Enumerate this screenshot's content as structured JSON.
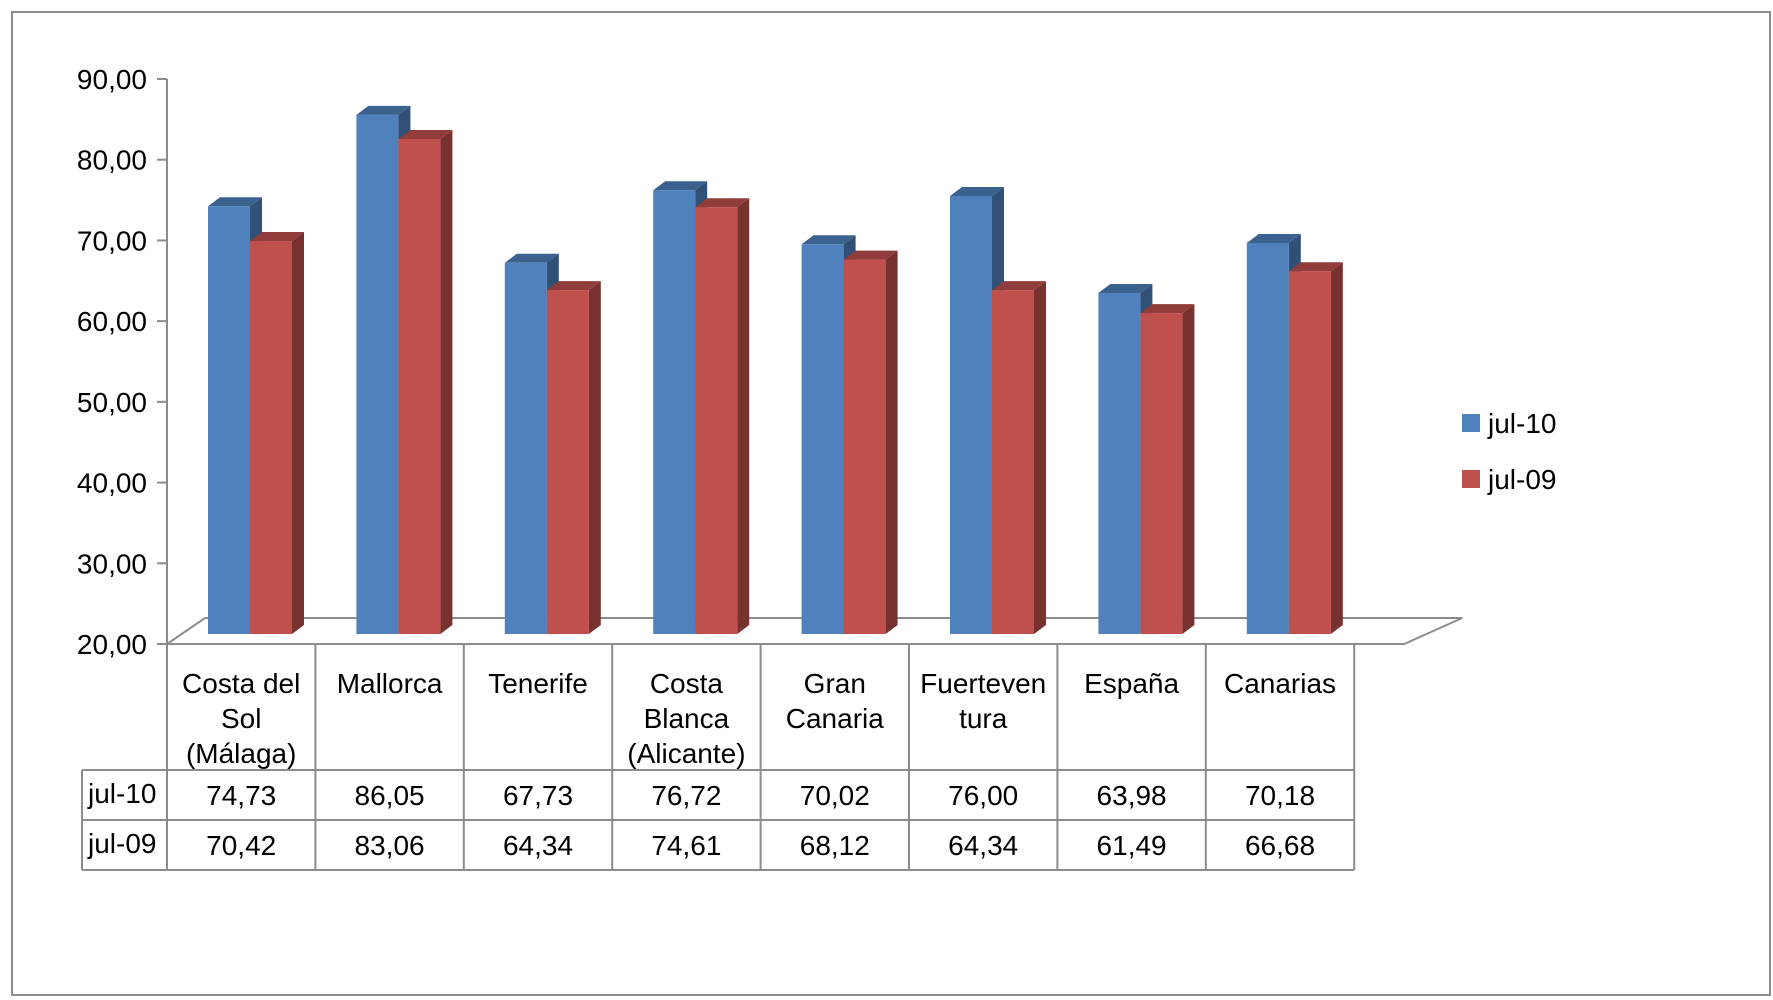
{
  "chart_data": {
    "type": "bar",
    "categories": [
      "Costa del Sol (Málaga)",
      "Mallorca",
      "Tenerife",
      "Costa Blanca (Alicante)",
      "Gran Canaria",
      "Fuerteventura",
      "España",
      "Canarias"
    ],
    "category_label_lines": [
      [
        "Costa del",
        "Sol",
        "(Málaga)"
      ],
      [
        "Mallorca"
      ],
      [
        "Tenerife"
      ],
      [
        "Costa",
        "Blanca",
        "(Alicante)"
      ],
      [
        "Gran",
        "Canaria"
      ],
      [
        "Fuerteven",
        "tura"
      ],
      [
        "España"
      ],
      [
        "Canarias"
      ]
    ],
    "series": [
      {
        "name": "jul-10",
        "color": "#4f81bd",
        "values": [
          74.73,
          86.05,
          67.73,
          76.72,
          70.02,
          76.0,
          63.98,
          70.18
        ],
        "labels": [
          "74,73",
          "86,05",
          "67,73",
          "76,72",
          "70,02",
          "76,00",
          "63,98",
          "70,18"
        ]
      },
      {
        "name": "jul-09",
        "color": "#c0504d",
        "values": [
          70.42,
          83.06,
          64.34,
          74.61,
          68.12,
          64.34,
          61.49,
          66.68
        ],
        "labels": [
          "70,42",
          "83,06",
          "64,34",
          "74,61",
          "68,12",
          "64,34",
          "61,49",
          "66,68"
        ]
      }
    ],
    "ylim": [
      20,
      90
    ],
    "yticks": [
      "90,00",
      "80,00",
      "70,00",
      "60,00",
      "50,00",
      "40,00",
      "30,00",
      "20,00"
    ],
    "ytick_values": [
      90,
      80,
      70,
      60,
      50,
      40,
      30,
      20
    ],
    "grid": false,
    "legend_position": "right",
    "data_table": true,
    "style": "3d-clustered-column"
  }
}
